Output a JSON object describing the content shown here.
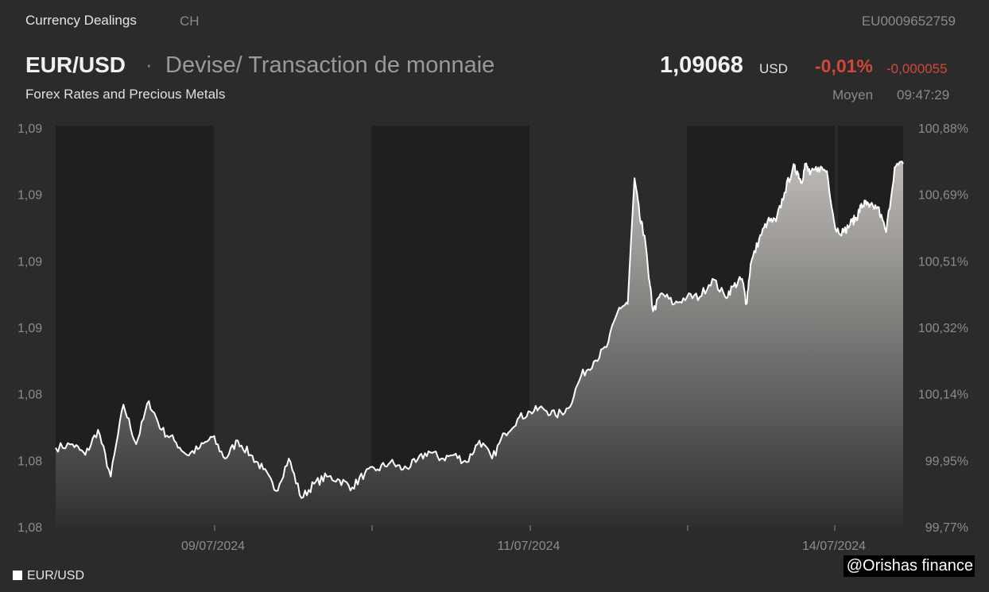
{
  "header": {
    "category": "Currency Dealings",
    "country": "CH",
    "isin": "EU0009652759",
    "pair": "EUR/USD",
    "separator": "·",
    "description": "Devise/ Transaction de monnaie",
    "subtitle": "Forex Rates and Precious Metals",
    "price": "1,09068",
    "currency": "USD",
    "change_pct": "-0,01%",
    "change_abs": "-0,000055",
    "quote_type": "Moyen",
    "quote_time": "09:47:29"
  },
  "colors": {
    "background": "#2b2b2b",
    "session_band": "#1f1f1f",
    "line": "#ffffff",
    "negative": "#d2473a"
  },
  "legend": {
    "label": "EUR/USD"
  },
  "watermark": "@Orishas finance",
  "chart_data": {
    "type": "area",
    "x_axis_labels": [
      "09/07/2024",
      "11/07/2024",
      "14/07/2024"
    ],
    "left_tick_labels": [
      "1,09",
      "1,09",
      "1,09",
      "1,09",
      "1,08",
      "1,08",
      "1,08"
    ],
    "right_tick_labels": [
      "100,88%",
      "100,69%",
      "100,51%",
      "100,32%",
      "100,14%",
      "99,95%",
      "99,77%"
    ],
    "ylim_pct": [
      99.77,
      100.88
    ],
    "legend_placement": "bottom-left",
    "grid": false,
    "series": [
      {
        "name": "EUR/USD",
        "t": [
          0,
          0.02,
          0.035,
          0.05,
          0.065,
          0.08,
          0.095,
          0.11,
          0.125,
          0.14,
          0.155,
          0.17,
          0.185,
          0.2,
          0.215,
          0.23,
          0.245,
          0.26,
          0.275,
          0.29,
          0.305,
          0.32,
          0.335,
          0.35,
          0.365,
          0.38,
          0.395,
          0.41,
          0.425,
          0.44,
          0.455,
          0.47,
          0.485,
          0.5,
          0.515,
          0.53,
          0.545,
          0.56,
          0.575,
          0.59,
          0.605,
          0.62,
          0.635,
          0.65,
          0.665,
          0.675,
          0.683,
          0.69,
          0.695,
          0.7,
          0.705,
          0.715,
          0.73,
          0.745,
          0.76,
          0.775,
          0.79,
          0.8,
          0.81,
          0.815,
          0.82,
          0.83,
          0.84,
          0.85,
          0.86,
          0.87,
          0.875,
          0.88,
          0.885,
          0.89,
          0.9,
          0.91,
          0.92,
          0.93,
          0.94,
          0.945,
          0.95,
          0.955,
          0.96,
          0.97,
          0.98,
          0.99,
          1.0
        ],
        "pct": [
          99.99,
          100.0,
          99.97,
          100.04,
          99.91,
          100.11,
          100.0,
          100.12,
          100.04,
          100.01,
          99.97,
          99.99,
          100.02,
          99.96,
          100.01,
          99.97,
          99.93,
          99.87,
          99.96,
          99.85,
          99.89,
          99.91,
          99.9,
          99.88,
          99.92,
          99.93,
          99.95,
          99.93,
          99.95,
          99.98,
          99.96,
          99.97,
          99.95,
          100.01,
          99.96,
          100.03,
          100.07,
          100.09,
          100.1,
          100.08,
          100.1,
          100.19,
          100.23,
          100.27,
          100.38,
          100.39,
          100.74,
          100.62,
          100.58,
          100.46,
          100.37,
          100.42,
          100.39,
          100.41,
          100.41,
          100.46,
          100.41,
          100.44,
          100.46,
          100.39,
          100.5,
          100.57,
          100.62,
          100.62,
          100.7,
          100.77,
          100.76,
          100.73,
          100.78,
          100.75,
          100.77,
          100.76,
          100.6,
          100.59,
          100.62,
          100.63,
          100.66,
          100.67,
          100.66,
          100.66,
          100.59,
          100.77,
          100.78
        ]
      }
    ]
  }
}
